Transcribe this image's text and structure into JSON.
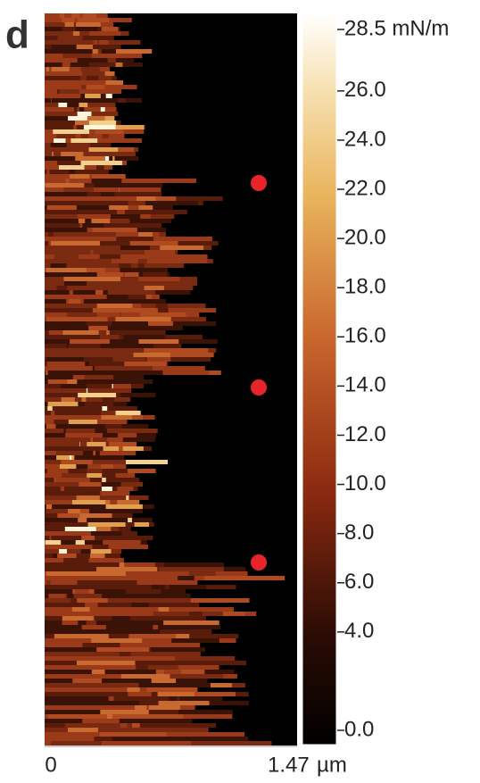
{
  "chart_data": {
    "type": "heatmap",
    "panel_label": "d",
    "xlim": [
      0,
      1.47
    ],
    "xticks": [
      {
        "value": 0,
        "label": "0"
      },
      {
        "value": 1.47,
        "label": "1.47"
      }
    ],
    "x_unit": "µm",
    "colorbar_lim": [
      0,
      28.5
    ],
    "colorbar_ticks": [
      {
        "value": 28.5,
        "label": "28.5 mN/m"
      },
      {
        "value": 26,
        "label": "26.0"
      },
      {
        "value": 24,
        "label": "24.0"
      },
      {
        "value": 22,
        "label": "22.0"
      },
      {
        "value": 20,
        "label": "20.0"
      },
      {
        "value": 18,
        "label": "18.0"
      },
      {
        "value": 16,
        "label": "16.0"
      },
      {
        "value": 14,
        "label": "14.0"
      },
      {
        "value": 12,
        "label": "12.0"
      },
      {
        "value": 10,
        "label": "10.0"
      },
      {
        "value": 8,
        "label": "8.0"
      },
      {
        "value": 6,
        "label": "6.0"
      },
      {
        "value": 4,
        "label": "4.0"
      },
      {
        "value": 0,
        "label": "0.0"
      }
    ]
  }
}
